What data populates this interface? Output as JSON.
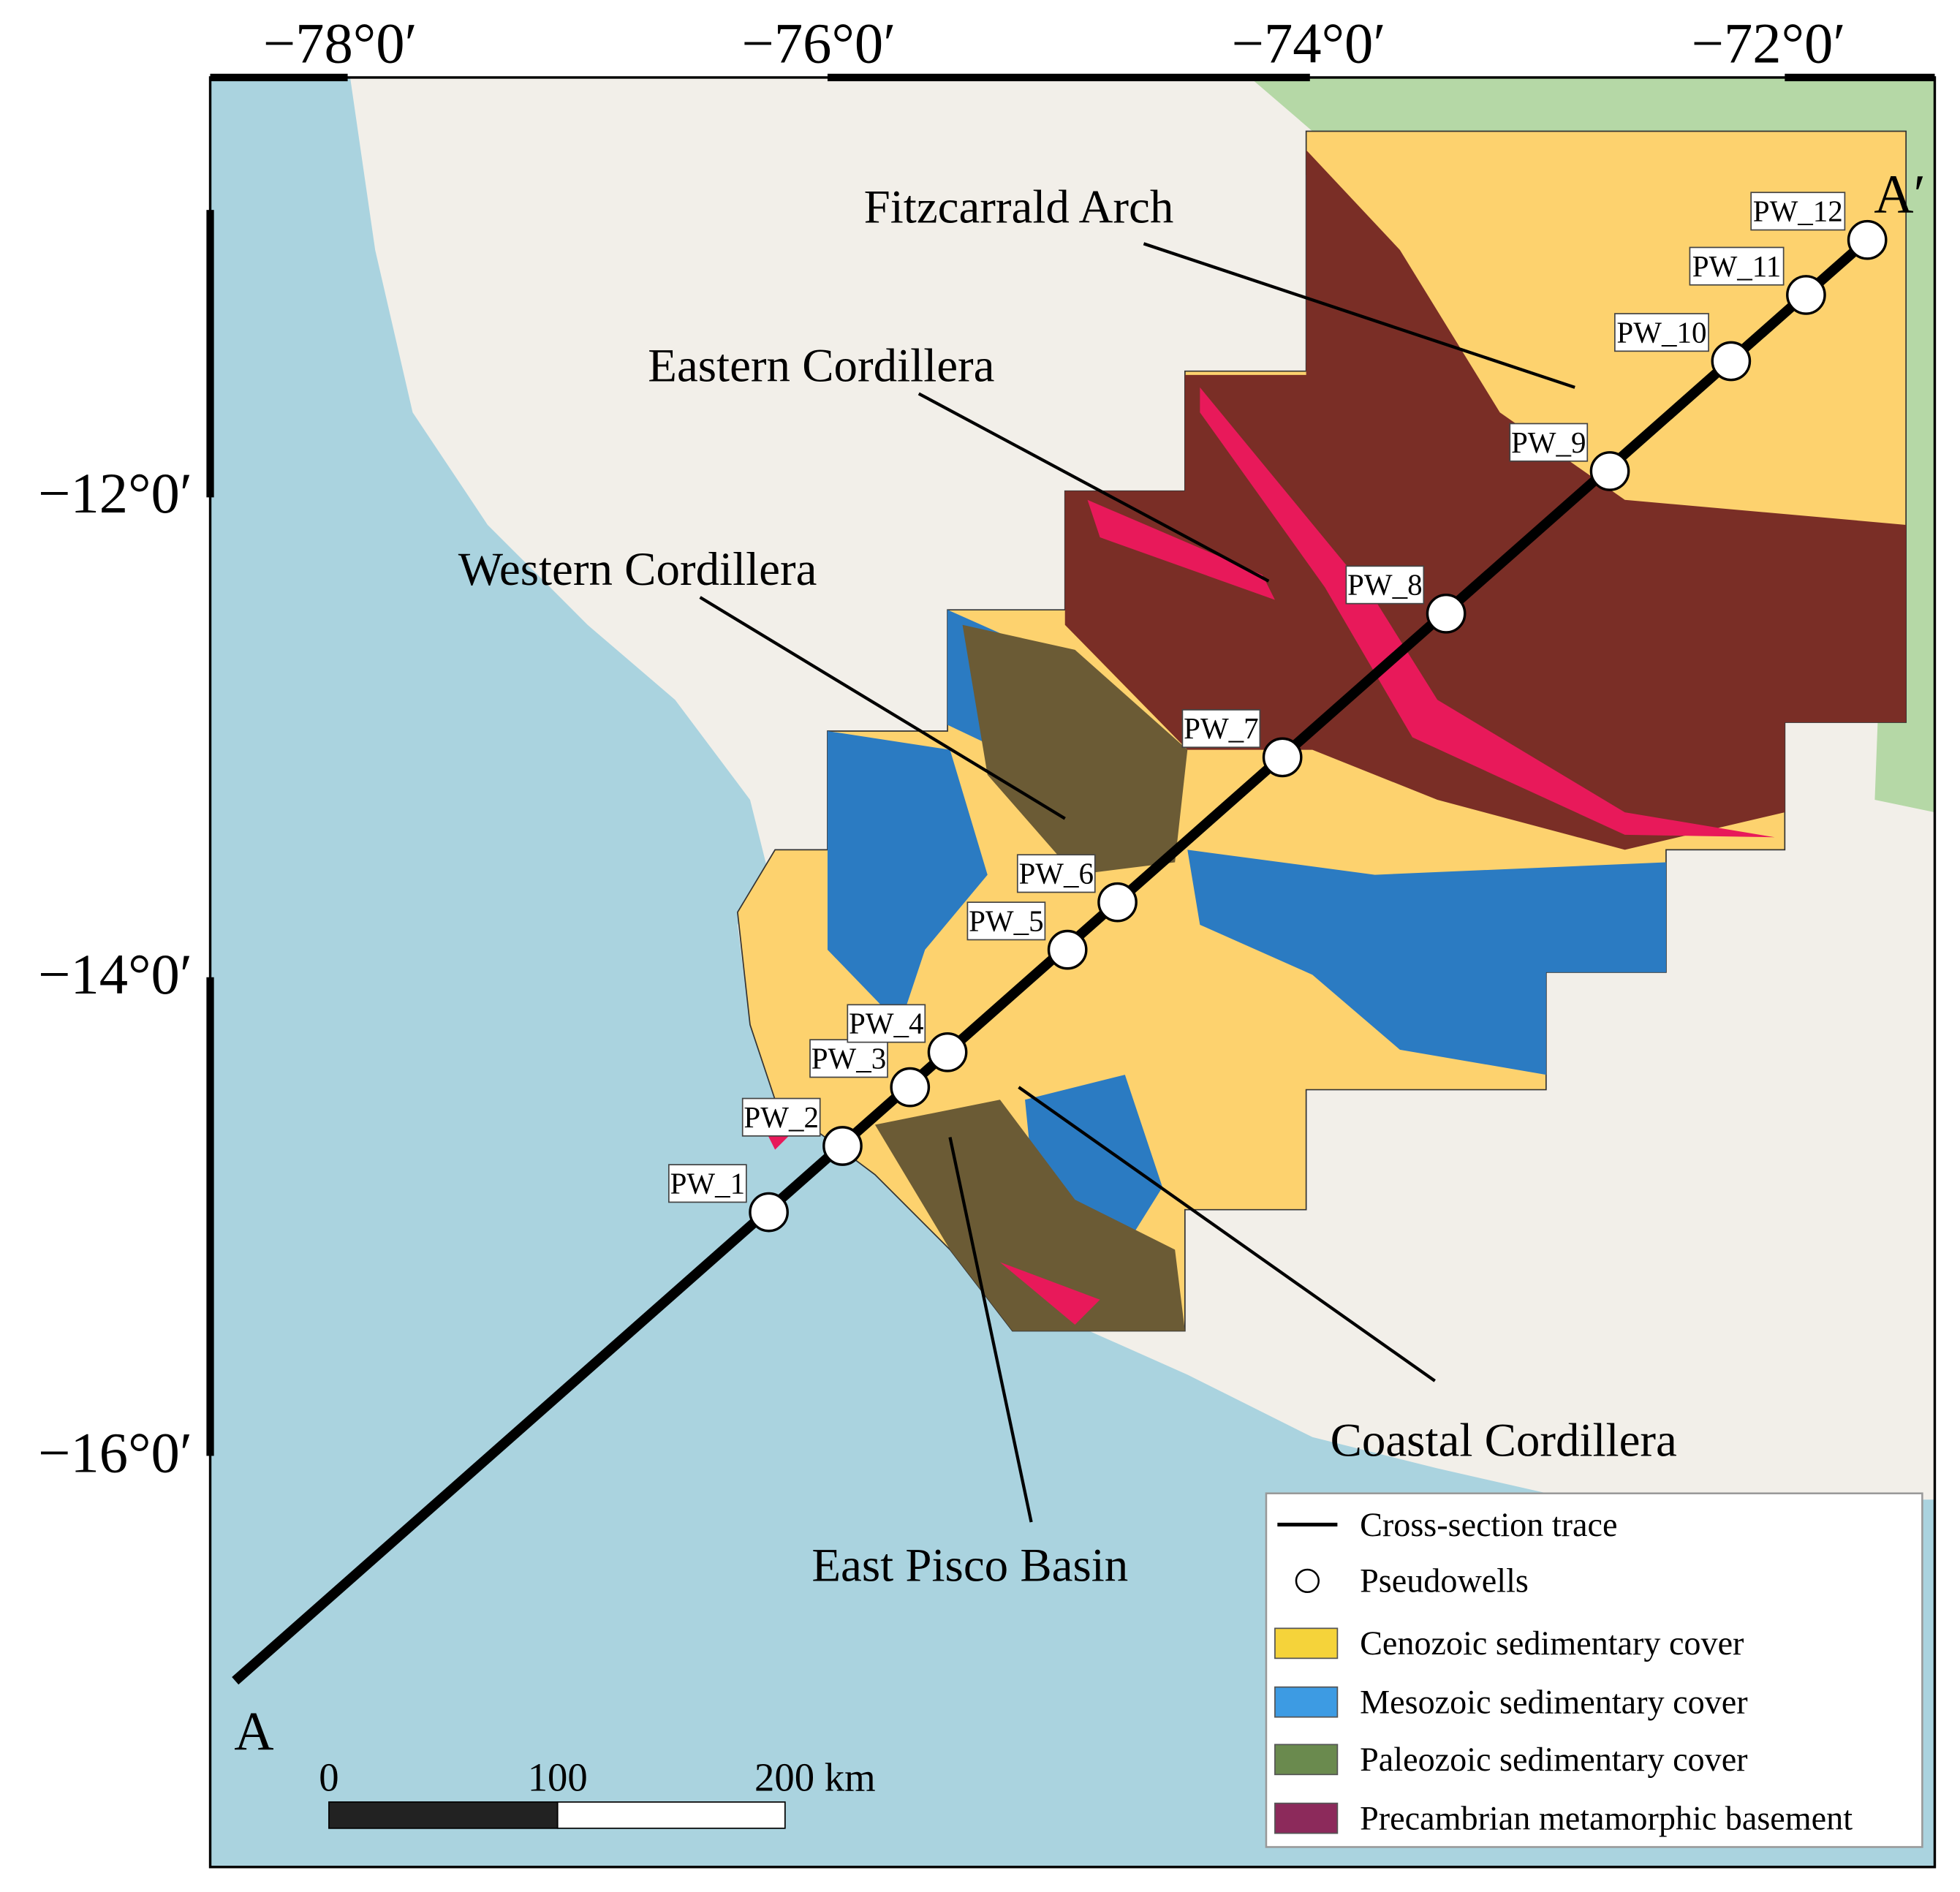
{
  "axes": {
    "top": [
      "−78°0′",
      "−76°0′",
      "−74°0′",
      "−72°0′"
    ],
    "left": [
      "−12°0′",
      "−14°0′",
      "−16°0′"
    ]
  },
  "regions": [
    "Fitzcarrald Arch",
    "Eastern Cordillera",
    "Western Cordillera",
    "Coastal Cordillera",
    "East Pisco Basin"
  ],
  "endpoints": {
    "start": "A",
    "end": "A′"
  },
  "wells": [
    "PW_1",
    "PW_2",
    "PW_3",
    "PW_4",
    "PW_5",
    "PW_6",
    "PW_7",
    "PW_8",
    "PW_9",
    "PW_10",
    "PW_11",
    "PW_12"
  ],
  "legend": [
    "Cross-section trace",
    "Pseudowells",
    "Cenozoic sedimentary cover",
    "Mesozoic sedimentary cover",
    "Paleozoic sedimentary cover",
    "Precambrian metamorphic basement"
  ],
  "scale_bar": [
    "0",
    "100",
    "200 km"
  ]
}
